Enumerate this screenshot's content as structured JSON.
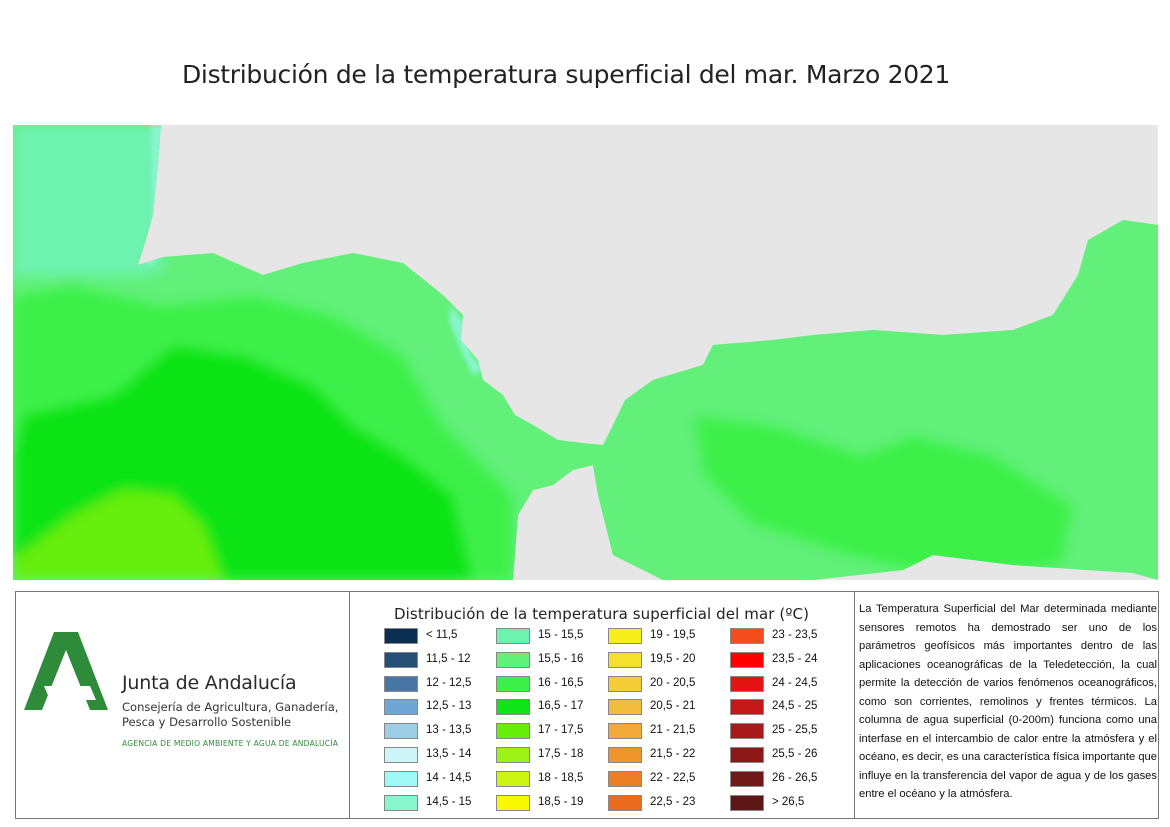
{
  "title": "Distribución de la temperatura superficial del mar. Marzo 2021",
  "map": {
    "land_color": "#e6e6e6",
    "dominant_classes": [
      "15 - 15,5",
      "15,5 - 16",
      "16 - 16,5",
      "16,5 - 17",
      "17 - 17,5"
    ]
  },
  "logo": {
    "name": "Junta de Andalucía",
    "department_lines": [
      "Consejería de Agricultura, Ganadería,",
      "Pesca y Desarrollo Sostenible"
    ],
    "agency": "AGENCIA DE MEDIO AMBIENTE Y AGUA DE ANDALUCÍA",
    "brand_color": "#2e8b3a"
  },
  "legend": {
    "title": "Distribución de la temperatura superficial del mar (ºC)",
    "items": [
      {
        "label": "< 11,5",
        "color": "#0a2e52"
      },
      {
        "label": "11,5 - 12",
        "color": "#264f78"
      },
      {
        "label": "12 - 12,5",
        "color": "#4877a6"
      },
      {
        "label": "12,5 - 13",
        "color": "#6fa6d6"
      },
      {
        "label": "13 - 13,5",
        "color": "#9ecde6"
      },
      {
        "label": "13,5 - 14",
        "color": "#cdf5f8"
      },
      {
        "label": "14 - 14,5",
        "color": "#9ef8f6"
      },
      {
        "label": "14,5 - 15",
        "color": "#88f5cc"
      },
      {
        "label": "15 - 15,5",
        "color": "#6ef2b0"
      },
      {
        "label": "15,5 - 16",
        "color": "#62f07a"
      },
      {
        "label": "16 - 16,5",
        "color": "#3ef04a"
      },
      {
        "label": "16,5 - 17",
        "color": "#10e418"
      },
      {
        "label": "17 - 17,5",
        "color": "#66ee0a"
      },
      {
        "label": "17,5 - 18",
        "color": "#9bf214"
      },
      {
        "label": "18 - 18,5",
        "color": "#ccf514"
      },
      {
        "label": "18,5 - 19",
        "color": "#f8f800"
      },
      {
        "label": "19 - 19,5",
        "color": "#f8ee1c"
      },
      {
        "label": "19,5 - 20",
        "color": "#f6e02e"
      },
      {
        "label": "20 - 20,5",
        "color": "#f3cc36"
      },
      {
        "label": "20,5 - 21",
        "color": "#f2bc3c"
      },
      {
        "label": "21 - 21,5",
        "color": "#f2a93a"
      },
      {
        "label": "21,5 - 22",
        "color": "#f0952c"
      },
      {
        "label": "22 - 22,5",
        "color": "#ec7e24"
      },
      {
        "label": "22,5 - 23",
        "color": "#ec6a1e"
      },
      {
        "label": "23 - 23,5",
        "color": "#f44c1c"
      },
      {
        "label": "23,5 - 24",
        "color": "#ff0000"
      },
      {
        "label": "24 - 24,5",
        "color": "#e51414"
      },
      {
        "label": "24,5 - 25",
        "color": "#c41818"
      },
      {
        "label": "25 - 25,5",
        "color": "#a81a1a"
      },
      {
        "label": "25,5 - 26",
        "color": "#8c1818"
      },
      {
        "label": "26 - 26,5",
        "color": "#721818"
      },
      {
        "label": "> 26,5",
        "color": "#5c1616"
      }
    ]
  },
  "description": "La Temperatura Superficial del Mar determinada mediante sensores remotos ha demostrado ser uno de los parámetros geofísicos más importantes dentro de las aplicaciones oceanográficas de la Teledetección, la cual permite la detección de varios fenómenos oceanográficos, como son corrientes, remolinos y frentes térmicos. La columna de agua superficial (0-200m) funciona como una interfase en el intercambio de calor entre la atmósfera y el océano, es decir, es una característica física importante que influye en la transferencia del vapor de agua y de los gases entre el océano y la atmósfera."
}
